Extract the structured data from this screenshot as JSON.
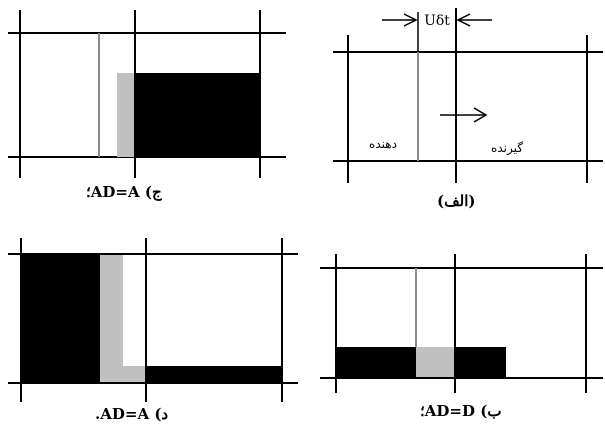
{
  "panels": {
    "top_left": {
      "caption": "ج) AD=A؛"
    },
    "top_right": {
      "caption": "(الف)",
      "donor_label": "دهنده",
      "receiver_label": "گیرنده",
      "annotation": "Uδt"
    },
    "bottom_left": {
      "caption": "د) AD=A."
    },
    "bottom_right": {
      "caption": "ب) AD=D؛"
    }
  },
  "colors": {
    "line": "#000000",
    "gray_line": "#8c8c8c",
    "fill_black": "#000000",
    "fill_gray": "#c0c0c0",
    "background": "#ffffff"
  }
}
